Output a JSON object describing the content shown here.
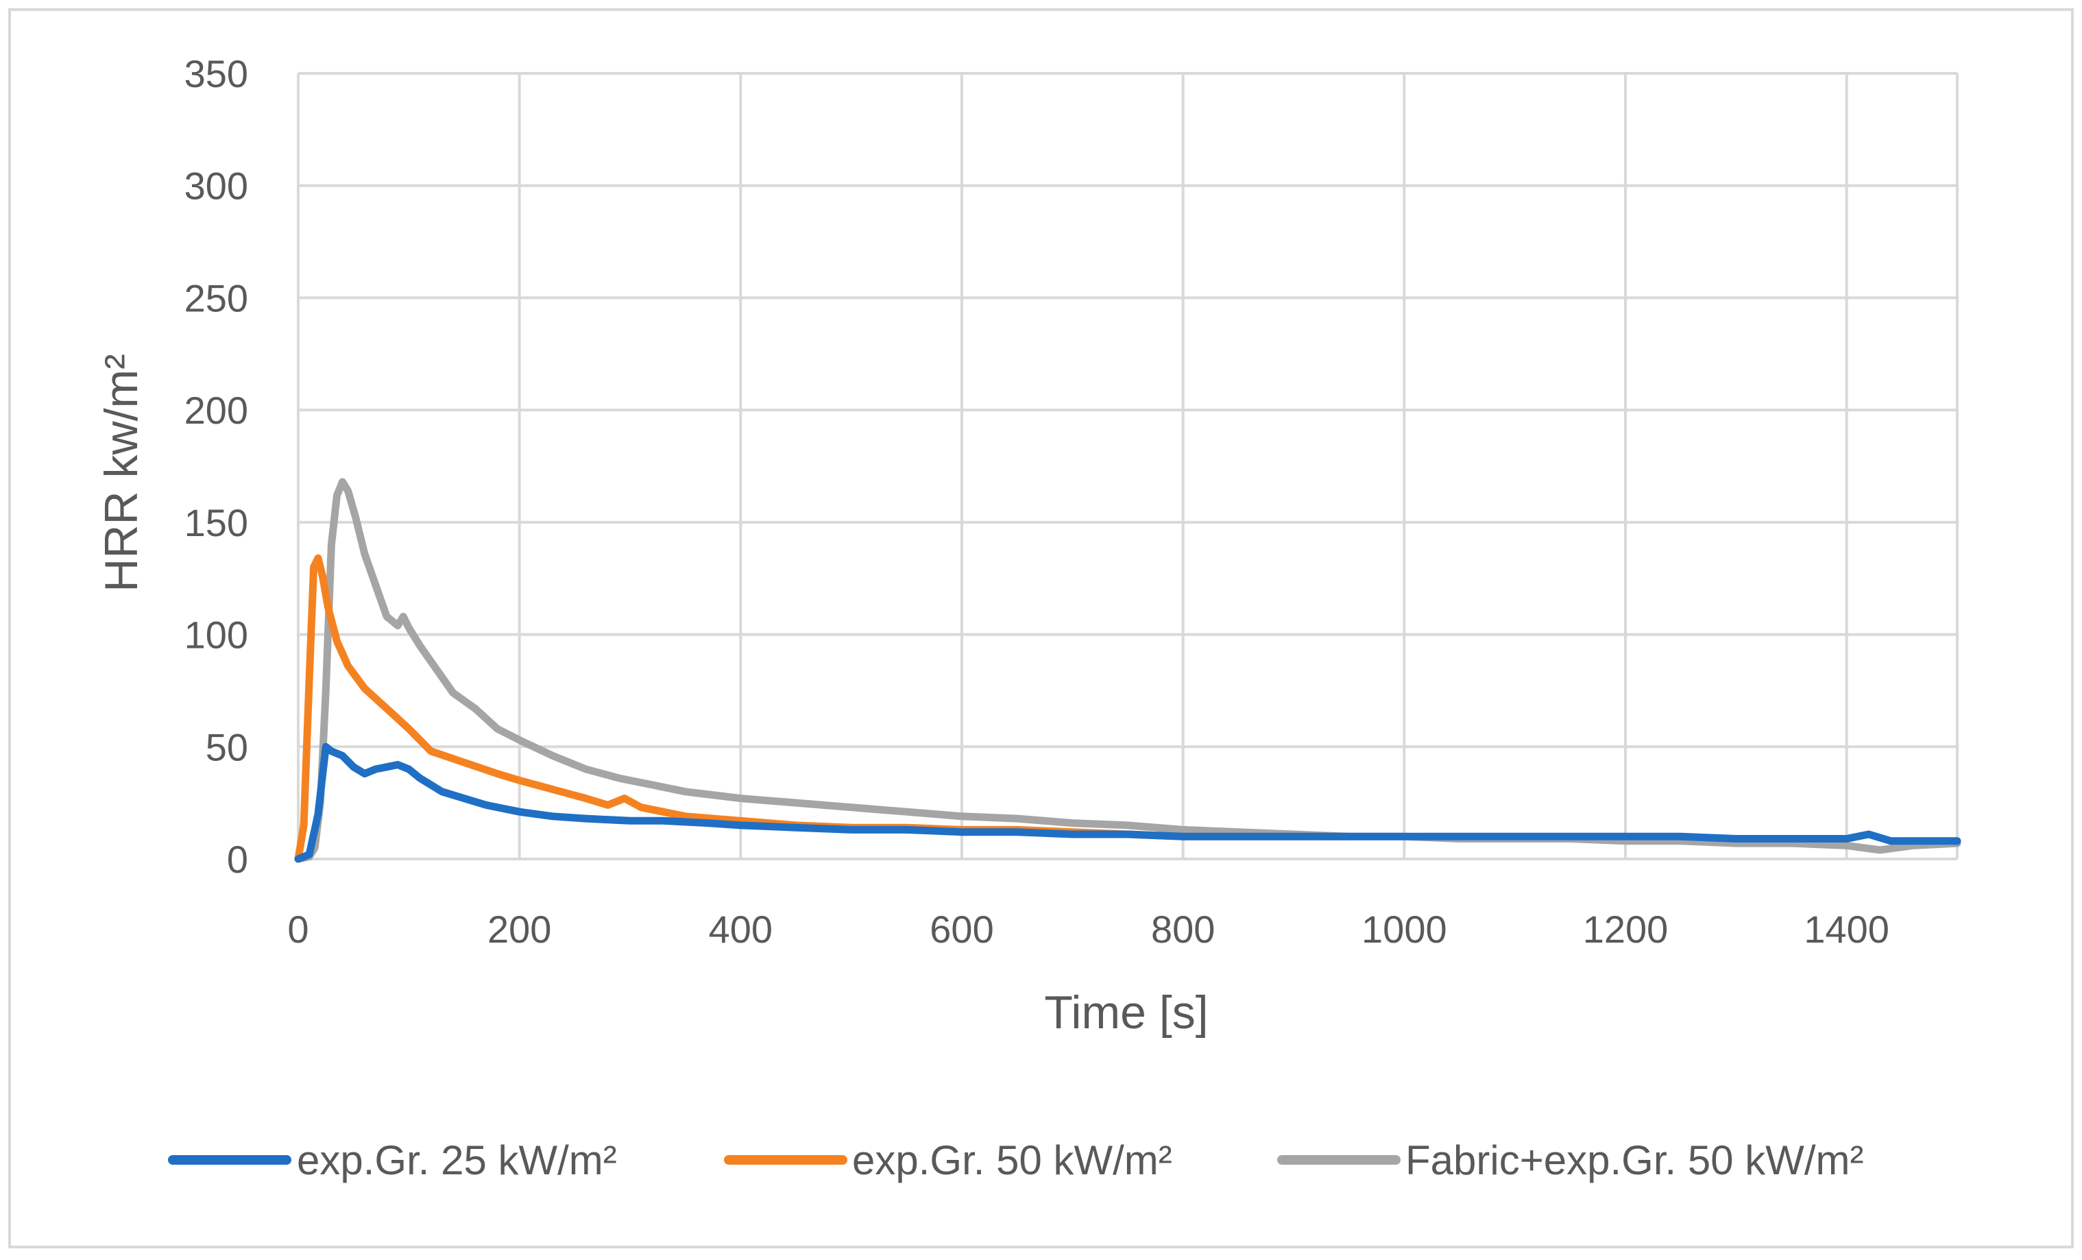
{
  "chart_data": {
    "type": "line",
    "title": "",
    "xlabel": "Time [s]",
    "ylabel": "HRR kw/m²",
    "xlim": [
      0,
      1500
    ],
    "ylim": [
      0,
      350
    ],
    "xticks": [
      0,
      200,
      400,
      600,
      800,
      1000,
      1200,
      1400
    ],
    "yticks": [
      0,
      50,
      100,
      150,
      200,
      250,
      300,
      350
    ],
    "grid": true,
    "legend_position": "bottom",
    "series": [
      {
        "name": "exp.Gr. 25 kW/m²",
        "color": "#1F6FC5",
        "points": [
          [
            0,
            0
          ],
          [
            10,
            2
          ],
          [
            18,
            20
          ],
          [
            25,
            50
          ],
          [
            30,
            48
          ],
          [
            40,
            46
          ],
          [
            50,
            41
          ],
          [
            60,
            38
          ],
          [
            70,
            40
          ],
          [
            80,
            41
          ],
          [
            90,
            42
          ],
          [
            100,
            40
          ],
          [
            110,
            36
          ],
          [
            130,
            30
          ],
          [
            150,
            27
          ],
          [
            170,
            24
          ],
          [
            200,
            21
          ],
          [
            230,
            19
          ],
          [
            260,
            18
          ],
          [
            300,
            17
          ],
          [
            330,
            17
          ],
          [
            370,
            16
          ],
          [
            400,
            15
          ],
          [
            450,
            14
          ],
          [
            500,
            13
          ],
          [
            550,
            13
          ],
          [
            600,
            12
          ],
          [
            650,
            12
          ],
          [
            700,
            11
          ],
          [
            750,
            11
          ],
          [
            800,
            10
          ],
          [
            850,
            10
          ],
          [
            900,
            10
          ],
          [
            950,
            10
          ],
          [
            1000,
            10
          ],
          [
            1050,
            10
          ],
          [
            1100,
            10
          ],
          [
            1150,
            10
          ],
          [
            1200,
            10
          ],
          [
            1250,
            10
          ],
          [
            1300,
            9
          ],
          [
            1350,
            9
          ],
          [
            1400,
            9
          ],
          [
            1420,
            11
          ],
          [
            1440,
            8
          ],
          [
            1500,
            8
          ]
        ]
      },
      {
        "name": "exp.Gr. 50 kW/m²",
        "color": "#F58220",
        "points": [
          [
            0,
            0
          ],
          [
            5,
            15
          ],
          [
            10,
            80
          ],
          [
            14,
            130
          ],
          [
            18,
            134
          ],
          [
            22,
            126
          ],
          [
            27,
            112
          ],
          [
            35,
            97
          ],
          [
            45,
            86
          ],
          [
            60,
            76
          ],
          [
            80,
            67
          ],
          [
            100,
            58
          ],
          [
            120,
            48
          ],
          [
            150,
            43
          ],
          [
            180,
            38
          ],
          [
            200,
            35
          ],
          [
            230,
            31
          ],
          [
            260,
            27
          ],
          [
            280,
            24
          ],
          [
            295,
            27
          ],
          [
            310,
            23
          ],
          [
            350,
            19
          ],
          [
            400,
            17
          ],
          [
            450,
            15
          ],
          [
            500,
            14
          ],
          [
            550,
            14
          ],
          [
            600,
            13
          ],
          [
            650,
            13
          ],
          [
            700,
            12
          ],
          [
            750,
            11
          ],
          [
            800,
            10
          ],
          [
            850,
            10
          ],
          [
            900,
            10
          ],
          [
            950,
            10
          ]
        ]
      },
      {
        "name": "Fabric+exp.Gr. 50 kW/m²",
        "color": "#A5A5A5",
        "points": [
          [
            0,
            0
          ],
          [
            10,
            1
          ],
          [
            15,
            5
          ],
          [
            20,
            25
          ],
          [
            25,
            75
          ],
          [
            30,
            140
          ],
          [
            35,
            162
          ],
          [
            40,
            168
          ],
          [
            45,
            164
          ],
          [
            52,
            152
          ],
          [
            60,
            136
          ],
          [
            70,
            122
          ],
          [
            80,
            108
          ],
          [
            90,
            104
          ],
          [
            95,
            108
          ],
          [
            100,
            103
          ],
          [
            110,
            95
          ],
          [
            120,
            88
          ],
          [
            140,
            74
          ],
          [
            160,
            67
          ],
          [
            180,
            58
          ],
          [
            200,
            53
          ],
          [
            230,
            46
          ],
          [
            260,
            40
          ],
          [
            290,
            36
          ],
          [
            320,
            33
          ],
          [
            350,
            30
          ],
          [
            400,
            27
          ],
          [
            450,
            25
          ],
          [
            500,
            23
          ],
          [
            550,
            21
          ],
          [
            600,
            19
          ],
          [
            650,
            18
          ],
          [
            700,
            16
          ],
          [
            750,
            15
          ],
          [
            800,
            13
          ],
          [
            850,
            12
          ],
          [
            900,
            11
          ],
          [
            950,
            10
          ],
          [
            1000,
            10
          ],
          [
            1050,
            9
          ],
          [
            1100,
            9
          ],
          [
            1150,
            9
          ],
          [
            1200,
            8
          ],
          [
            1250,
            8
          ],
          [
            1300,
            7
          ],
          [
            1350,
            7
          ],
          [
            1400,
            6
          ],
          [
            1430,
            4
          ],
          [
            1460,
            6
          ],
          [
            1500,
            7
          ]
        ]
      }
    ]
  }
}
